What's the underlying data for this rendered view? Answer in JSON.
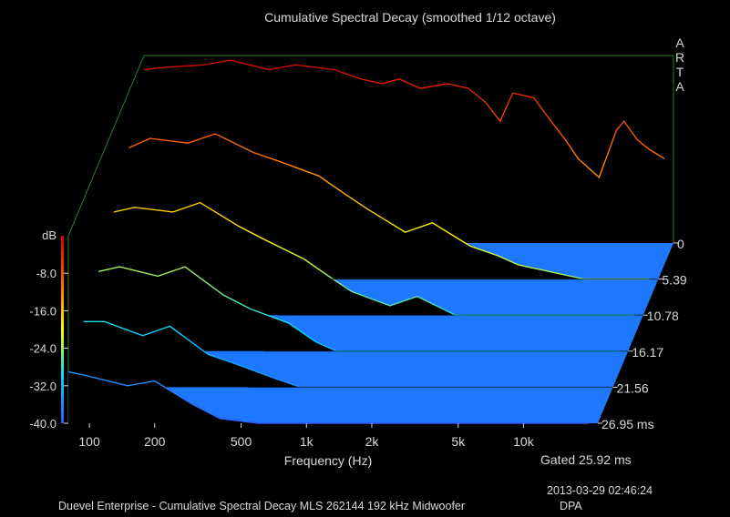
{
  "chart_data": {
    "type": "area",
    "title": "Cumulative Spectral Decay (smoothed 1/12 octave)",
    "brand": "ARTA",
    "xlabel": "Frequency (Hz)",
    "x_scale": "log",
    "xlim": [
      80,
      22000
    ],
    "x_ticks": [
      {
        "value": 100,
        "label": "100"
      },
      {
        "value": 200,
        "label": "200"
      },
      {
        "value": 500,
        "label": "500"
      },
      {
        "value": 1000,
        "label": "1k"
      },
      {
        "value": 2000,
        "label": "2k"
      },
      {
        "value": 5000,
        "label": "5k"
      },
      {
        "value": 10000,
        "label": "10k"
      }
    ],
    "ylabel": "dB",
    "ylim": [
      -40,
      0
    ],
    "y_ticks": [
      {
        "value": -8,
        "label": "-8.0"
      },
      {
        "value": -16,
        "label": "-16.0"
      },
      {
        "value": -24,
        "label": "-24.0"
      },
      {
        "value": -32,
        "label": "-32.0"
      },
      {
        "value": -40,
        "label": "-40.0"
      }
    ],
    "zlim_ms": [
      0,
      26.95
    ],
    "z_ticks": [
      {
        "value": 0,
        "label": "0"
      },
      {
        "value": 5.39,
        "label": "5.39"
      },
      {
        "value": 10.78,
        "label": "10.78"
      },
      {
        "value": 16.17,
        "label": "16.17"
      },
      {
        "value": 21.56,
        "label": "21.56"
      },
      {
        "value": 26.95,
        "label": "26.95 ms"
      }
    ],
    "gated_label": "Gated 25.92 ms",
    "colormap": [
      "#3355ff",
      "#00d8ff",
      "#ffff00",
      "#ff6600",
      "#cc0000"
    ],
    "floor_color": "#1e78ff",
    "series": [
      {
        "time_ms": 0.0,
        "points": [
          [
            80,
            -3
          ],
          [
            100,
            -2.5
          ],
          [
            150,
            -2
          ],
          [
            200,
            -1
          ],
          [
            300,
            -3
          ],
          [
            400,
            -2
          ],
          [
            600,
            -3
          ],
          [
            800,
            -5
          ],
          [
            1000,
            -6
          ],
          [
            1200,
            -5
          ],
          [
            1500,
            -7
          ],
          [
            2000,
            -6
          ],
          [
            2500,
            -7
          ],
          [
            3000,
            -10
          ],
          [
            3500,
            -14
          ],
          [
            4000,
            -8
          ],
          [
            5000,
            -9
          ],
          [
            6000,
            -14
          ],
          [
            7000,
            -18
          ],
          [
            8000,
            -22
          ],
          [
            10000,
            -26
          ],
          [
            12000,
            -16
          ],
          [
            13000,
            -14
          ],
          [
            15000,
            -18
          ],
          [
            17000,
            -20
          ],
          [
            20000,
            -22
          ]
        ]
      },
      {
        "time_ms": 5.39,
        "points": [
          [
            80,
            -12
          ],
          [
            100,
            -10
          ],
          [
            150,
            -11
          ],
          [
            200,
            -9
          ],
          [
            300,
            -13
          ],
          [
            400,
            -15
          ],
          [
            600,
            -18
          ],
          [
            800,
            -22
          ],
          [
            1000,
            -25
          ],
          [
            1500,
            -30
          ],
          [
            2000,
            -28
          ],
          [
            3000,
            -33
          ],
          [
            4000,
            -35
          ],
          [
            5000,
            -37
          ],
          [
            10000,
            -40
          ],
          [
            20000,
            -40
          ]
        ]
      },
      {
        "time_ms": 10.78,
        "points": [
          [
            80,
            -18
          ],
          [
            100,
            -17
          ],
          [
            150,
            -18
          ],
          [
            200,
            -16
          ],
          [
            300,
            -21
          ],
          [
            400,
            -24
          ],
          [
            600,
            -28
          ],
          [
            800,
            -32
          ],
          [
            1000,
            -35
          ],
          [
            1500,
            -38
          ],
          [
            2000,
            -36
          ],
          [
            3000,
            -40
          ],
          [
            20000,
            -40
          ]
        ]
      },
      {
        "time_ms": 16.17,
        "points": [
          [
            80,
            -23
          ],
          [
            100,
            -22
          ],
          [
            150,
            -24
          ],
          [
            200,
            -22
          ],
          [
            300,
            -28
          ],
          [
            400,
            -31
          ],
          [
            600,
            -34
          ],
          [
            800,
            -38
          ],
          [
            1000,
            -40
          ],
          [
            20000,
            -40
          ]
        ]
      },
      {
        "time_ms": 21.56,
        "points": [
          [
            80,
            -26
          ],
          [
            100,
            -26
          ],
          [
            150,
            -29
          ],
          [
            200,
            -27
          ],
          [
            300,
            -33
          ],
          [
            400,
            -35
          ],
          [
            600,
            -38
          ],
          [
            800,
            -40
          ],
          [
            20000,
            -40
          ]
        ]
      },
      {
        "time_ms": 26.95,
        "points": [
          [
            80,
            -29
          ],
          [
            100,
            -30
          ],
          [
            150,
            -32
          ],
          [
            200,
            -31
          ],
          [
            300,
            -36
          ],
          [
            400,
            -39
          ],
          [
            600,
            -40
          ],
          [
            20000,
            -40
          ]
        ]
      }
    ]
  },
  "footer": {
    "caption": "Duevel Enterprise - Cumulative Spectral Decay MLS 262144 192 kHz Midwoofer",
    "timestamp": "2013-03-29  02:46:24",
    "author": "DPA"
  }
}
